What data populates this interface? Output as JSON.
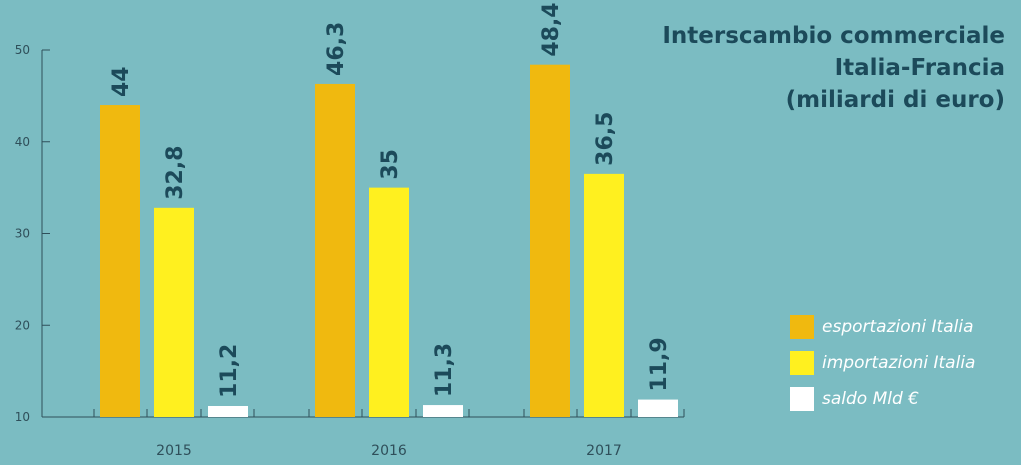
{
  "title_lines": [
    "Interscambio commerciale",
    "Italia-Francia",
    "(miliardi di euro)"
  ],
  "colors": {
    "background": "#7bbcc2",
    "axis": "#2f4f5a",
    "label_text": "#1c4a5a",
    "tick_text": "#2f4f5a"
  },
  "chart_data": {
    "type": "bar",
    "title": "Interscambio commerciale Italia-Francia (miliardi di euro)",
    "categories": [
      "2015",
      "2016",
      "2017"
    ],
    "series": [
      {
        "name": "esportazioni Italia",
        "values": [
          44,
          46.3,
          48.4
        ],
        "labels": [
          "44",
          "46,3",
          "48,4"
        ],
        "color": "#f0b90f"
      },
      {
        "name": "importazioni Italia",
        "values": [
          32.8,
          35,
          36.5
        ],
        "labels": [
          "32,8",
          "35",
          "36,5"
        ],
        "color": "#fff01f"
      },
      {
        "name": "saldo Mld €",
        "values": [
          11.2,
          11.3,
          11.9
        ],
        "labels": [
          "11,2",
          "11,3",
          "11,9"
        ],
        "color": "#ffffff"
      }
    ],
    "ylim": [
      10,
      50
    ],
    "yticks": [
      10,
      20,
      30,
      40,
      50
    ],
    "xlabel": "",
    "ylabel": "",
    "grid": false,
    "legend_position": "bottom-right"
  }
}
